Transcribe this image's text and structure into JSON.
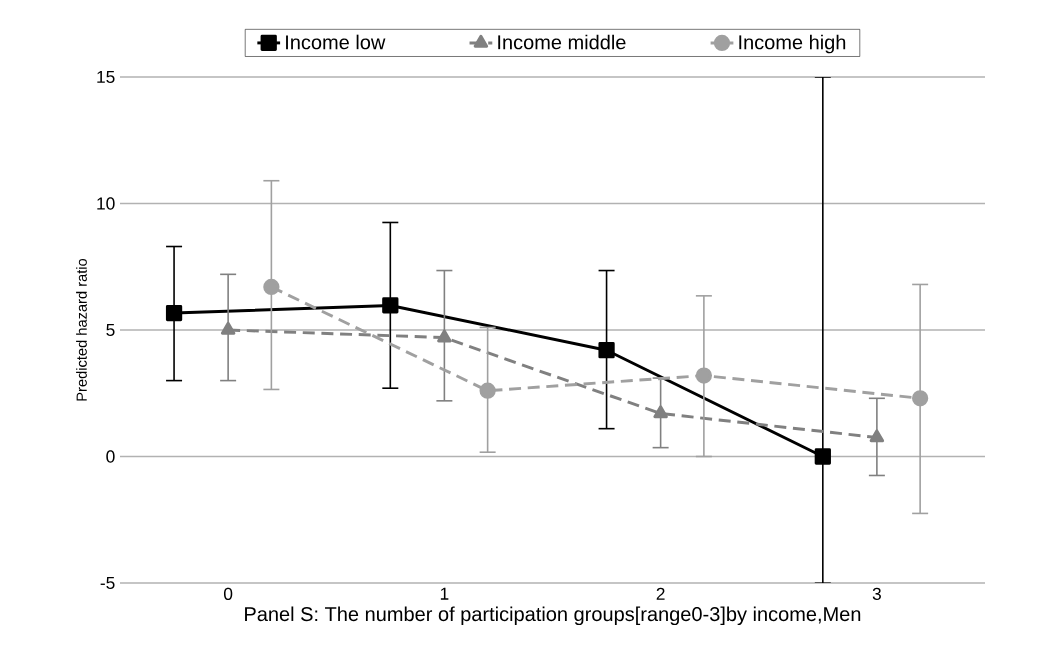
{
  "chart_data": {
    "type": "line",
    "xlabel": "Panel S: The number of participation groups[range0-3]by income,Men",
    "ylabel": "Predicted hazard ratio",
    "xlim": [
      -0.5,
      3.5
    ],
    "ylim": [
      -5,
      15
    ],
    "xticks": [
      0,
      1,
      2,
      3
    ],
    "yticks": [
      -5,
      0,
      5,
      10,
      15
    ],
    "grid": "y",
    "legend": "top",
    "series": [
      {
        "name": "Income low",
        "color": "#000000",
        "marker": "square",
        "line_style": "solid",
        "x": [
          -0.25,
          0.75,
          1.75,
          2.75
        ],
        "values": [
          5.67,
          5.97,
          4.2,
          0
        ],
        "errors": [
          [
            3.0,
            8.3
          ],
          [
            2.7,
            9.25
          ],
          [
            1.1,
            7.35
          ],
          [
            -5,
            15
          ]
        ]
      },
      {
        "name": "Income middle",
        "color": "#808080",
        "marker": "triangle",
        "line_style": "dashed",
        "x": [
          0,
          1,
          2,
          3
        ],
        "values": [
          5.0,
          4.7,
          1.7,
          0.75
        ],
        "errors": [
          [
            3.0,
            7.2
          ],
          [
            2.2,
            7.35
          ],
          [
            0.35,
            3.1
          ],
          [
            -0.75,
            2.3
          ]
        ]
      },
      {
        "name": "Income high",
        "color": "#a0a0a0",
        "marker": "circle",
        "line_style": "dashed",
        "x": [
          0.2,
          1.2,
          2.2,
          3.2
        ],
        "values": [
          6.7,
          2.6,
          3.2,
          2.3
        ],
        "errors": [
          [
            2.65,
            10.9
          ],
          [
            0.17,
            5.1
          ],
          [
            0,
            6.35
          ],
          [
            -2.25,
            6.8
          ]
        ]
      }
    ]
  }
}
